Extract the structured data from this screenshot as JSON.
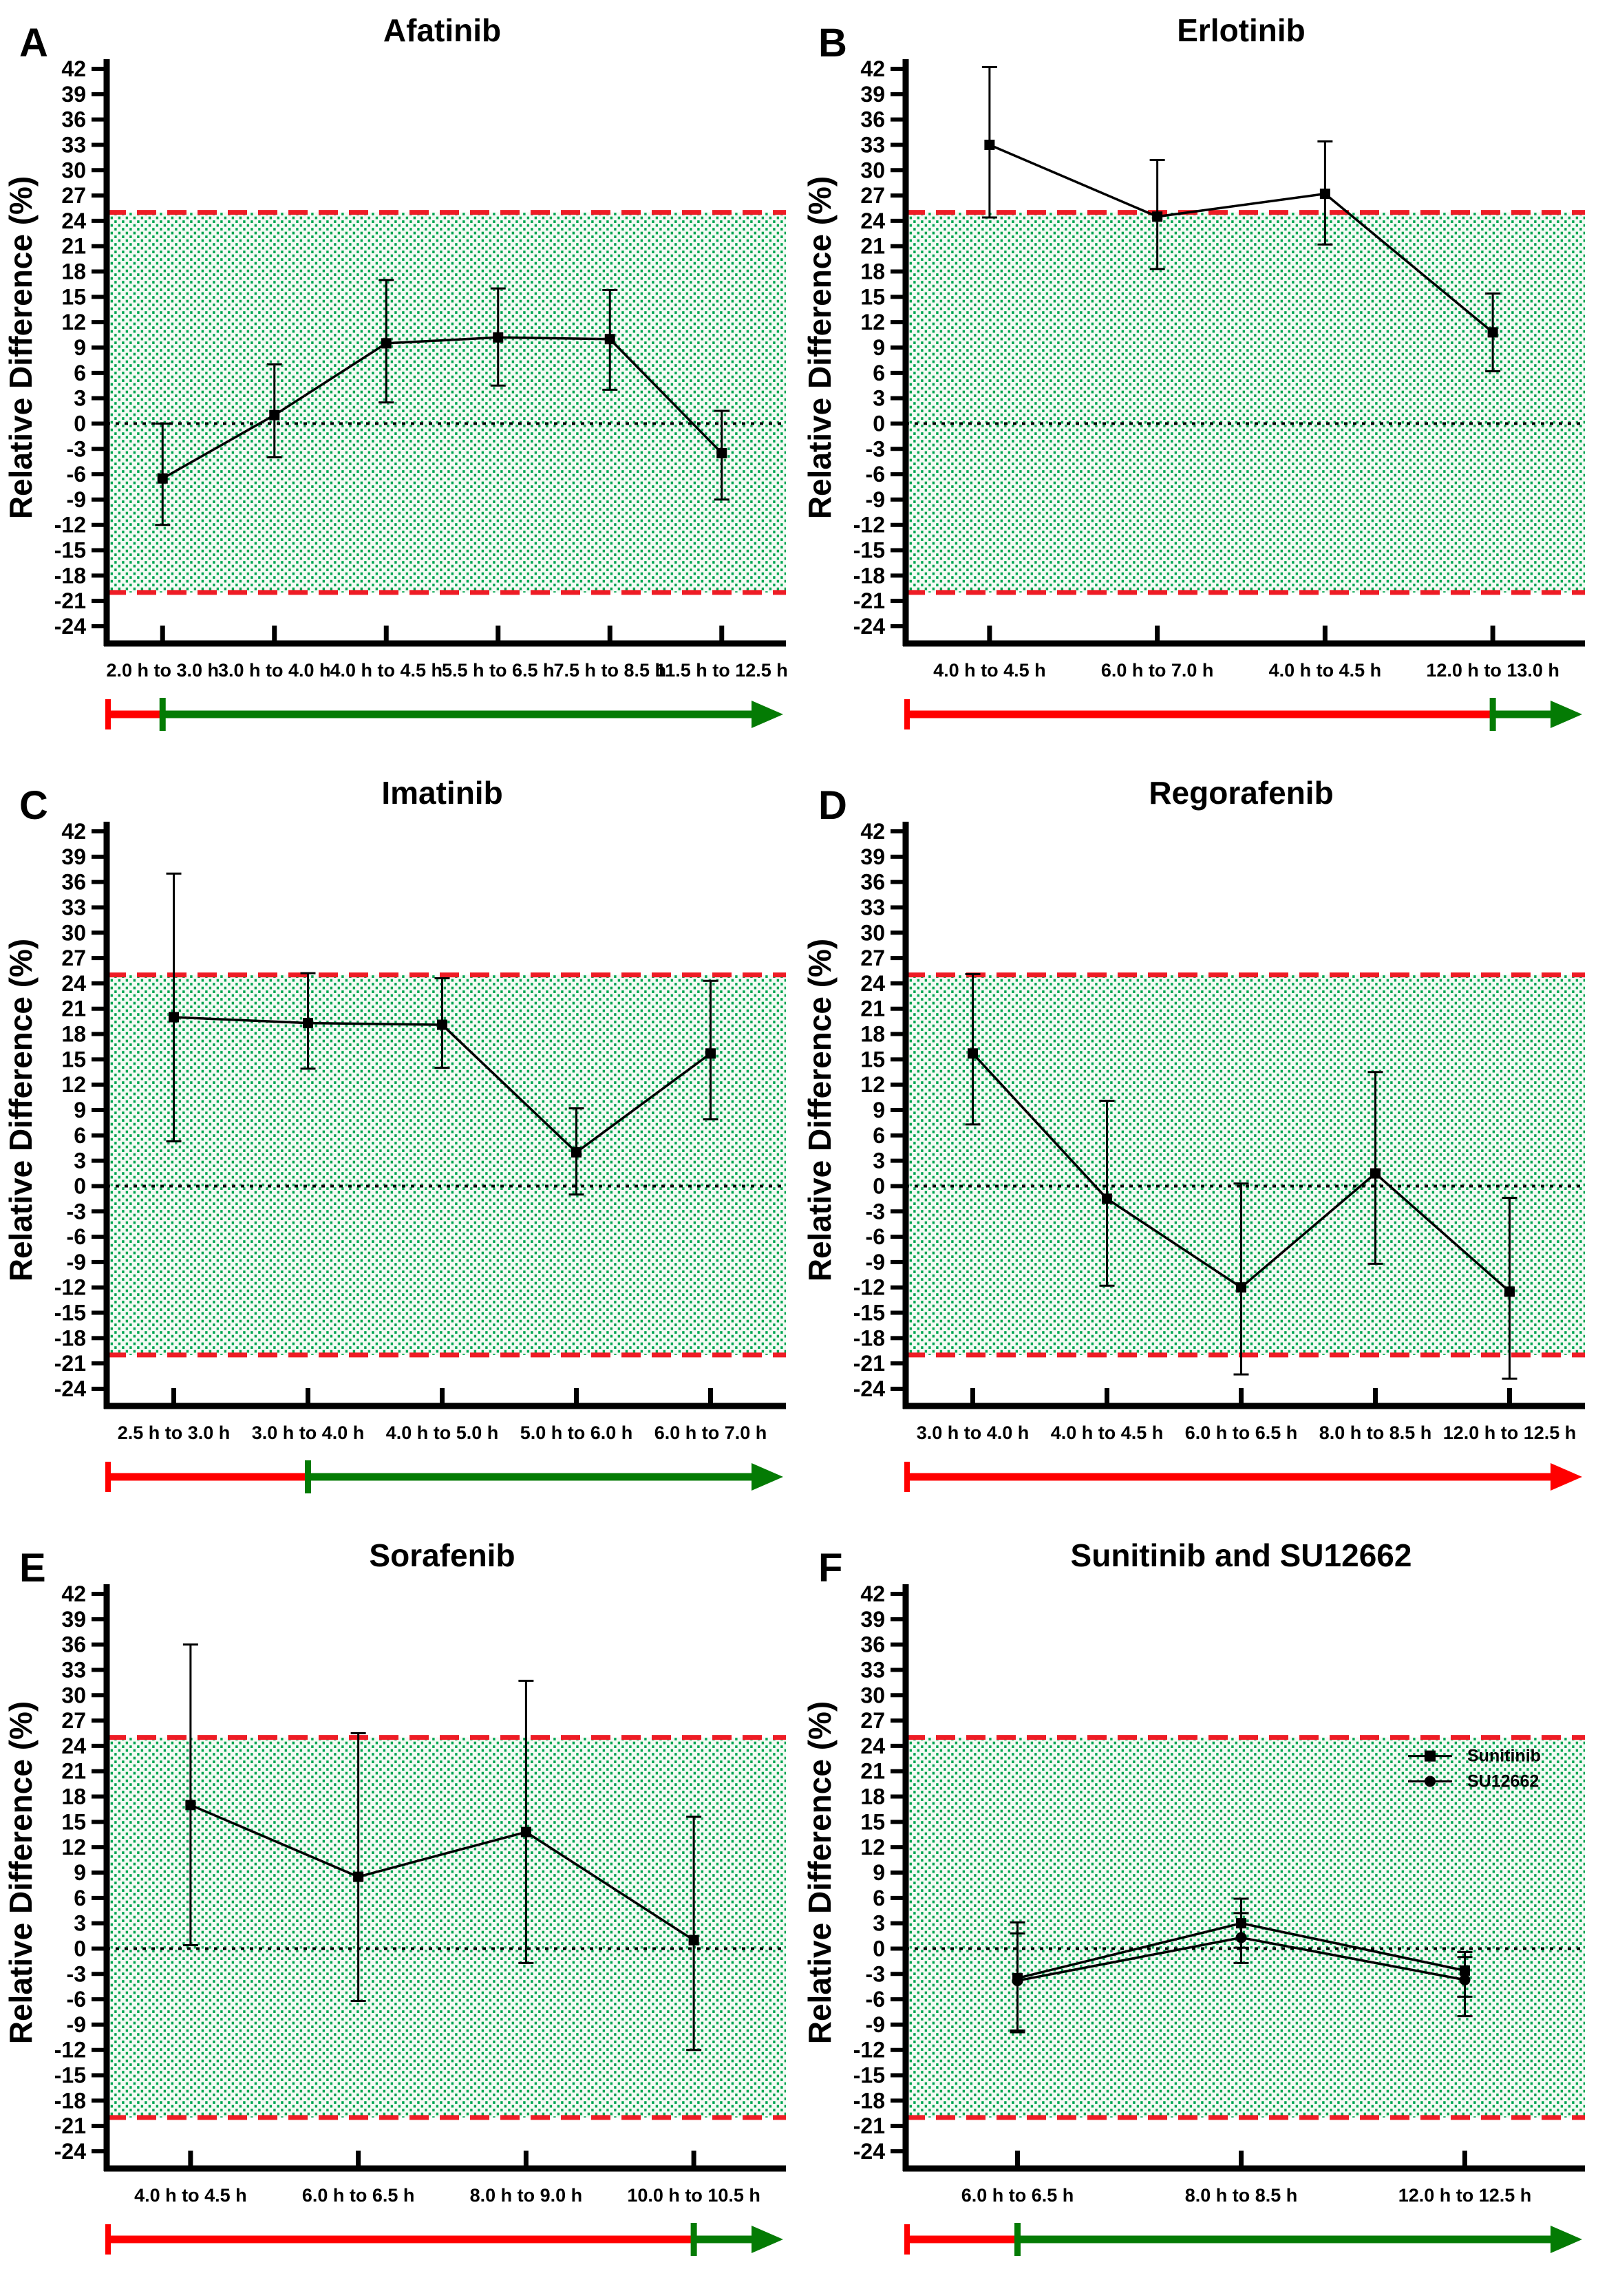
{
  "figure": {
    "ylabel": "Relative Difference (%)",
    "colors": {
      "band_dot": "#00A551",
      "band_bg": "#F4FAF4",
      "limit_line": "#EE1C25",
      "zero_line": "#000000",
      "series_line": "#000000",
      "arrow_red": "#FF0000",
      "arrow_green": "#047B04",
      "axis": "#000000"
    }
  },
  "chart_data": [
    {
      "panel": "A",
      "type": "line",
      "title": "Afatinib",
      "ylabel": "Relative Difference (%)",
      "xlabel": "",
      "ylim": [
        -24,
        42
      ],
      "ytick_step": 3,
      "upper_limit": 25,
      "lower_limit": -20,
      "zero_line": 0,
      "grid": "off",
      "categories": [
        "2.0 h to 3.0 h",
        "3.0 h to 4.0 h",
        "4.0 h to 4.5 h",
        "5.5 h to 6.5 h",
        "7.5 h to 8.5 h",
        "11.5 h to 12.5 h"
      ],
      "series": [
        {
          "name": "Afatinib",
          "marker": "square",
          "values": [
            -6.5,
            1.0,
            9.5,
            10.2,
            10.0,
            -3.5
          ],
          "err_high": [
            0.0,
            7.0,
            17.0,
            16.0,
            15.8,
            1.5
          ],
          "err_low": [
            -12.0,
            -4.0,
            2.5,
            4.5,
            4.0,
            -9.0
          ]
        }
      ],
      "timeline": {
        "start_color": "red",
        "green_from_category_index": 0,
        "end": "green-arrowhead"
      }
    },
    {
      "panel": "B",
      "type": "line",
      "title": "Erlotinib",
      "ylabel": "Relative Difference (%)",
      "xlabel": "",
      "ylim": [
        -24,
        42
      ],
      "ytick_step": 3,
      "upper_limit": 25,
      "lower_limit": -20,
      "zero_line": 0,
      "grid": "off",
      "categories": [
        "4.0 h to 4.5 h",
        "6.0 h to 7.0 h",
        "4.0 h to 4.5 h",
        "12.0 h to 13.0 h"
      ],
      "series": [
        {
          "name": "Erlotinib",
          "marker": "square",
          "values": [
            33.0,
            24.5,
            27.2,
            10.8
          ],
          "err_high": [
            42.2,
            31.2,
            33.4,
            15.4
          ],
          "err_low": [
            24.4,
            18.3,
            21.2,
            6.2
          ]
        }
      ],
      "timeline": {
        "start_color": "red",
        "green_from_category_index": 3,
        "end": "green-arrowhead"
      }
    },
    {
      "panel": "C",
      "type": "line",
      "title": "Imatinib",
      "ylabel": "Relative Difference (%)",
      "xlabel": "",
      "ylim": [
        -24,
        42
      ],
      "ytick_step": 3,
      "upper_limit": 25,
      "lower_limit": -20,
      "zero_line": 0,
      "grid": "off",
      "categories": [
        "2.5 h to 3.0 h",
        "3.0 h to 4.0 h",
        "4.0 h to 5.0 h",
        "5.0 h to 6.0 h",
        "6.0 h to 7.0 h"
      ],
      "series": [
        {
          "name": "Imatinib",
          "marker": "square",
          "values": [
            20.0,
            19.3,
            19.1,
            4.0,
            15.7
          ],
          "err_high": [
            37.0,
            25.2,
            24.6,
            9.2,
            24.3
          ],
          "err_low": [
            5.3,
            13.9,
            14.0,
            -1.0,
            7.9
          ]
        }
      ],
      "timeline": {
        "start_color": "red",
        "green_from_category_index": 1,
        "end": "green-arrowhead"
      }
    },
    {
      "panel": "D",
      "type": "line",
      "title": "Regorafenib",
      "ylabel": "Relative Difference (%)",
      "xlabel": "",
      "ylim": [
        -24,
        42
      ],
      "ytick_step": 3,
      "upper_limit": 25,
      "lower_limit": -20,
      "zero_line": 0,
      "grid": "off",
      "categories": [
        "3.0 h to 4.0 h",
        "4.0 h to 4.5 h",
        "6.0 h to 6.5 h",
        "8.0 h to 8.5 h",
        "12.0 h to 12.5 h"
      ],
      "series": [
        {
          "name": "Regorafenib",
          "marker": "square",
          "values": [
            15.7,
            -1.5,
            -12.0,
            1.5,
            -12.5
          ],
          "err_high": [
            25.1,
            10.1,
            0.3,
            13.5,
            -1.4
          ],
          "err_low": [
            7.3,
            -11.8,
            -22.3,
            -9.2,
            -22.8
          ]
        }
      ],
      "timeline": {
        "start_color": "red",
        "green_from_category_index": null,
        "end": "red-arrowhead"
      }
    },
    {
      "panel": "E",
      "type": "line",
      "title": "Sorafenib",
      "ylabel": "Relative Difference (%)",
      "xlabel": "",
      "ylim": [
        -24,
        42
      ],
      "ytick_step": 3,
      "upper_limit": 25,
      "lower_limit": -20,
      "zero_line": 0,
      "grid": "off",
      "categories": [
        "4.0 h to 4.5 h",
        "6.0 h to 6.5 h",
        "8.0 h to 9.0 h",
        "10.0 h to 10.5 h"
      ],
      "series": [
        {
          "name": "Sorafenib",
          "marker": "square",
          "values": [
            17.0,
            8.5,
            13.8,
            1.0
          ],
          "err_high": [
            36.0,
            25.5,
            31.7,
            15.6
          ],
          "err_low": [
            0.4,
            -6.2,
            -1.7,
            -12.0
          ]
        }
      ],
      "timeline": {
        "start_color": "red",
        "green_from_category_index": 3,
        "end": "green-arrowhead"
      }
    },
    {
      "panel": "F",
      "type": "line",
      "title": "Sunitinib and SU12662",
      "ylabel": "Relative Difference (%)",
      "xlabel": "",
      "ylim": [
        -24,
        42
      ],
      "ytick_step": 3,
      "upper_limit": 25,
      "lower_limit": -20,
      "zero_line": 0,
      "grid": "off",
      "legend_position": "right-inside",
      "categories": [
        "6.0 h to 6.5 h",
        "8.0 h to 8.5 h",
        "12.0 h to 12.5 h"
      ],
      "series": [
        {
          "name": "Sunitinib",
          "marker": "square",
          "values": [
            -3.5,
            3.0,
            -2.6
          ],
          "err_high": [
            3.1,
            5.9,
            -0.4
          ],
          "err_low": [
            -9.7,
            0.1,
            -5.7
          ]
        },
        {
          "name": "SU12662",
          "marker": "circle",
          "values": [
            -3.8,
            1.3,
            -3.7
          ],
          "err_high": [
            1.8,
            4.2,
            -1.0
          ],
          "err_low": [
            -9.9,
            -1.7,
            -8.0
          ]
        }
      ],
      "timeline": {
        "start_color": "red",
        "green_from_category_index": 0,
        "end": "green-arrowhead"
      }
    }
  ]
}
